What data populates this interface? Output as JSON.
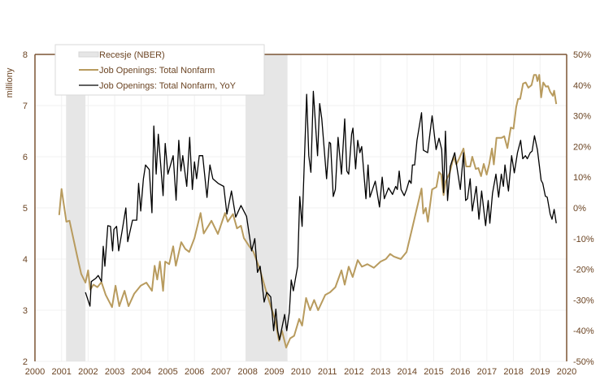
{
  "chart_data": {
    "type": "line",
    "title": "",
    "xlabel": "",
    "ylabel_left": "milliony",
    "ylabel_right": "",
    "xlim": [
      2000,
      2020
    ],
    "ylim_left": [
      2,
      8
    ],
    "ylim_right": [
      -50,
      50
    ],
    "x_ticks": [
      "2000",
      "2001",
      "2002",
      "2003",
      "2004",
      "2005",
      "2006",
      "2007",
      "2008",
      "2009",
      "2010",
      "2011",
      "2012",
      "2013",
      "2014",
      "2015",
      "2016",
      "2017",
      "2018",
      "2019",
      "2020"
    ],
    "y_ticks_left": [
      "2",
      "3",
      "4",
      "5",
      "6",
      "7",
      "8"
    ],
    "y_ticks_right": [
      "-50%",
      "-40%",
      "-30%",
      "-20%",
      "-10%",
      "0%",
      "10%",
      "20%",
      "30%",
      "40%",
      "50%"
    ],
    "grid": true,
    "legend_placement": "top-left",
    "legend": [
      "Recesje (NBER)",
      "Job Openings: Total Nonfarm",
      "Job Openings: Total Nonfarm, YoY"
    ],
    "recessions": [
      [
        2001.17,
        2001.9
      ],
      [
        2007.92,
        2009.5
      ]
    ],
    "colors": {
      "recession": "#e6e6e6",
      "level": "#b89b5e",
      "yoy": "#000000",
      "axis": "#7b5534"
    },
    "series": [
      {
        "name": "Job Openings: Total Nonfarm",
        "axis": "left",
        "unit": "millions",
        "points": [
          [
            2000.91,
            4.86
          ],
          [
            2001.0,
            5.37
          ],
          [
            2001.18,
            4.73
          ],
          [
            2001.3,
            4.75
          ],
          [
            2001.44,
            4.41
          ],
          [
            2001.6,
            4.03
          ],
          [
            2001.74,
            3.71
          ],
          [
            2001.9,
            3.54
          ],
          [
            2002.0,
            3.78
          ],
          [
            2002.08,
            3.4
          ],
          [
            2002.2,
            3.5
          ],
          [
            2002.35,
            3.45
          ],
          [
            2002.5,
            3.55
          ],
          [
            2002.66,
            3.3
          ],
          [
            2002.9,
            3.06
          ],
          [
            2003.03,
            3.48
          ],
          [
            2003.17,
            3.08
          ],
          [
            2003.37,
            3.38
          ],
          [
            2003.52,
            3.08
          ],
          [
            2003.73,
            3.32
          ],
          [
            2003.98,
            3.48
          ],
          [
            2004.19,
            3.54
          ],
          [
            2004.4,
            3.38
          ],
          [
            2004.5,
            3.87
          ],
          [
            2004.6,
            3.6
          ],
          [
            2004.7,
            3.95
          ],
          [
            2004.82,
            3.38
          ],
          [
            2004.9,
            3.95
          ],
          [
            2005.05,
            3.9
          ],
          [
            2005.2,
            4.25
          ],
          [
            2005.3,
            3.87
          ],
          [
            2005.5,
            4.33
          ],
          [
            2005.65,
            4.2
          ],
          [
            2005.8,
            4.14
          ],
          [
            2006.0,
            4.41
          ],
          [
            2006.23,
            4.9
          ],
          [
            2006.35,
            4.5
          ],
          [
            2006.64,
            4.75
          ],
          [
            2006.88,
            4.49
          ],
          [
            2007.15,
            4.9
          ],
          [
            2007.25,
            4.73
          ],
          [
            2007.45,
            4.88
          ],
          [
            2007.6,
            4.6
          ],
          [
            2007.75,
            4.65
          ],
          [
            2007.86,
            4.41
          ],
          [
            2008.06,
            4.25
          ],
          [
            2008.22,
            4.14
          ],
          [
            2008.47,
            3.78
          ],
          [
            2008.68,
            3.4
          ],
          [
            2008.87,
            3.08
          ],
          [
            2009.03,
            2.82
          ],
          [
            2009.18,
            2.4
          ],
          [
            2009.29,
            2.6
          ],
          [
            2009.45,
            2.27
          ],
          [
            2009.6,
            2.45
          ],
          [
            2009.75,
            2.5
          ],
          [
            2009.94,
            2.83
          ],
          [
            2010.05,
            2.7
          ],
          [
            2010.2,
            3.24
          ],
          [
            2010.35,
            3.0
          ],
          [
            2010.5,
            3.2
          ],
          [
            2010.65,
            3.0
          ],
          [
            2010.92,
            3.3
          ],
          [
            2011.1,
            3.35
          ],
          [
            2011.3,
            3.45
          ],
          [
            2011.53,
            3.78
          ],
          [
            2011.65,
            3.5
          ],
          [
            2011.8,
            3.85
          ],
          [
            2011.95,
            3.65
          ],
          [
            2012.14,
            3.98
          ],
          [
            2012.3,
            3.85
          ],
          [
            2012.5,
            3.9
          ],
          [
            2012.75,
            3.83
          ],
          [
            2013.0,
            3.95
          ],
          [
            2013.2,
            4.0
          ],
          [
            2013.36,
            4.1
          ],
          [
            2013.5,
            4.05
          ],
          [
            2013.76,
            4.0
          ],
          [
            2013.98,
            4.14
          ],
          [
            2014.2,
            4.62
          ],
          [
            2014.37,
            5.0
          ],
          [
            2014.54,
            5.38
          ],
          [
            2014.61,
            4.89
          ],
          [
            2014.7,
            5.0
          ],
          [
            2014.78,
            4.73
          ],
          [
            2014.94,
            5.36
          ],
          [
            2015.1,
            5.41
          ],
          [
            2015.2,
            5.7
          ],
          [
            2015.28,
            5.65
          ],
          [
            2015.37,
            5.25
          ],
          [
            2015.45,
            5.52
          ],
          [
            2015.6,
            5.68
          ],
          [
            2015.75,
            6.0
          ],
          [
            2015.85,
            5.85
          ],
          [
            2015.96,
            5.97
          ],
          [
            2016.12,
            6.16
          ],
          [
            2016.22,
            5.81
          ],
          [
            2016.37,
            5.81
          ],
          [
            2016.45,
            6.0
          ],
          [
            2016.58,
            5.76
          ],
          [
            2016.68,
            5.78
          ],
          [
            2016.78,
            5.62
          ],
          [
            2016.88,
            5.86
          ],
          [
            2016.99,
            5.65
          ],
          [
            2017.09,
            5.86
          ],
          [
            2017.19,
            6.16
          ],
          [
            2017.26,
            5.85
          ],
          [
            2017.36,
            6.37
          ],
          [
            2017.55,
            6.37
          ],
          [
            2017.65,
            6.4
          ],
          [
            2017.77,
            6.17
          ],
          [
            2017.9,
            6.57
          ],
          [
            2018.0,
            6.55
          ],
          [
            2018.1,
            6.97
          ],
          [
            2018.17,
            7.13
          ],
          [
            2018.25,
            7.13
          ],
          [
            2018.36,
            7.43
          ],
          [
            2018.46,
            7.45
          ],
          [
            2018.56,
            7.35
          ],
          [
            2018.68,
            7.4
          ],
          [
            2018.77,
            7.6
          ],
          [
            2018.85,
            7.6
          ],
          [
            2018.9,
            7.48
          ],
          [
            2018.97,
            7.6
          ],
          [
            2019.04,
            7.16
          ],
          [
            2019.12,
            7.45
          ],
          [
            2019.22,
            7.37
          ],
          [
            2019.3,
            7.38
          ],
          [
            2019.38,
            7.27
          ],
          [
            2019.48,
            7.19
          ],
          [
            2019.53,
            7.29
          ],
          [
            2019.61,
            7.03
          ]
        ]
      },
      {
        "name": "Job Openings: Total Nonfarm, YoY",
        "axis": "right",
        "unit": "%",
        "points": [
          [
            2001.9,
            -27.5
          ],
          [
            2002.07,
            -32
          ],
          [
            2002.12,
            -24
          ],
          [
            2002.28,
            -23
          ],
          [
            2002.38,
            -22
          ],
          [
            2002.5,
            -24
          ],
          [
            2002.57,
            -12.5
          ],
          [
            2002.63,
            -19
          ],
          [
            2002.74,
            -5.8
          ],
          [
            2002.84,
            -6
          ],
          [
            2002.92,
            -14
          ],
          [
            2002.97,
            -7
          ],
          [
            2003.07,
            -6
          ],
          [
            2003.15,
            -14
          ],
          [
            2003.27,
            -8
          ],
          [
            2003.42,
            0
          ],
          [
            2003.49,
            -11
          ],
          [
            2003.67,
            -4
          ],
          [
            2003.83,
            -4
          ],
          [
            2003.9,
            8
          ],
          [
            2003.98,
            -1
          ],
          [
            2004.08,
            9.5
          ],
          [
            2004.16,
            14
          ],
          [
            2004.3,
            12.5
          ],
          [
            2004.4,
            -1.6
          ],
          [
            2004.47,
            26.7
          ],
          [
            2004.56,
            11
          ],
          [
            2004.64,
            24
          ],
          [
            2004.82,
            4
          ],
          [
            2004.9,
            21
          ],
          [
            2005.0,
            11
          ],
          [
            2005.2,
            17
          ],
          [
            2005.31,
            2.5
          ],
          [
            2005.41,
            22
          ],
          [
            2005.49,
            12
          ],
          [
            2005.56,
            17
          ],
          [
            2005.71,
            7
          ],
          [
            2005.82,
            23
          ],
          [
            2005.92,
            6
          ],
          [
            2006.0,
            15
          ],
          [
            2006.08,
            9.5
          ],
          [
            2006.18,
            17
          ],
          [
            2006.31,
            17
          ],
          [
            2006.47,
            3.4
          ],
          [
            2006.58,
            14
          ],
          [
            2006.69,
            9.5
          ],
          [
            2006.89,
            8
          ],
          [
            2007.1,
            7
          ],
          [
            2007.22,
            -2
          ],
          [
            2007.39,
            5.5
          ],
          [
            2007.55,
            -3
          ],
          [
            2007.75,
            0.8
          ],
          [
            2007.96,
            -2.8
          ],
          [
            2008.15,
            -14
          ],
          [
            2008.27,
            -10
          ],
          [
            2008.37,
            -21
          ],
          [
            2008.47,
            -19
          ],
          [
            2008.62,
            -30.7
          ],
          [
            2008.72,
            -27.5
          ],
          [
            2008.87,
            -29
          ],
          [
            2008.98,
            -40
          ],
          [
            2009.06,
            -33
          ],
          [
            2009.13,
            -40
          ],
          [
            2009.2,
            -43
          ],
          [
            2009.39,
            -34.7
          ],
          [
            2009.47,
            -40
          ],
          [
            2009.57,
            -34
          ],
          [
            2009.64,
            -23.5
          ],
          [
            2009.72,
            -27
          ],
          [
            2009.88,
            -19
          ],
          [
            2009.96,
            3.7
          ],
          [
            2010.05,
            -6
          ],
          [
            2010.22,
            37
          ],
          [
            2010.3,
            17
          ],
          [
            2010.38,
            11.6
          ],
          [
            2010.47,
            38
          ],
          [
            2010.63,
            17
          ],
          [
            2010.71,
            34
          ],
          [
            2010.79,
            29
          ],
          [
            2010.97,
            9.5
          ],
          [
            2011.07,
            21.4
          ],
          [
            2011.12,
            21
          ],
          [
            2011.22,
            3.7
          ],
          [
            2011.3,
            6
          ],
          [
            2011.4,
            23
          ],
          [
            2011.53,
            11
          ],
          [
            2011.65,
            29
          ],
          [
            2011.73,
            12
          ],
          [
            2011.8,
            11
          ],
          [
            2011.91,
            24
          ],
          [
            2011.96,
            26
          ],
          [
            2012.06,
            12.7
          ],
          [
            2012.14,
            22
          ],
          [
            2012.22,
            18
          ],
          [
            2012.29,
            20
          ],
          [
            2012.45,
            3
          ],
          [
            2012.53,
            14
          ],
          [
            2012.6,
            3.5
          ],
          [
            2012.8,
            8.7
          ],
          [
            2012.96,
            0.3
          ],
          [
            2013.06,
            10
          ],
          [
            2013.14,
            3
          ],
          [
            2013.3,
            6.5
          ],
          [
            2013.45,
            4.4
          ],
          [
            2013.57,
            7
          ],
          [
            2013.63,
            6
          ],
          [
            2013.7,
            12
          ],
          [
            2013.77,
            6
          ],
          [
            2013.89,
            4
          ],
          [
            2013.98,
            6
          ],
          [
            2014.08,
            9
          ],
          [
            2014.15,
            8
          ],
          [
            2014.2,
            14
          ],
          [
            2014.28,
            14
          ],
          [
            2014.37,
            22
          ],
          [
            2014.54,
            31
          ],
          [
            2014.61,
            18.8
          ],
          [
            2014.77,
            18
          ],
          [
            2014.94,
            30
          ],
          [
            2015.09,
            19
          ],
          [
            2015.2,
            22.7
          ],
          [
            2015.3,
            19
          ],
          [
            2015.37,
            5
          ],
          [
            2015.44,
            25
          ],
          [
            2015.52,
            2.4
          ],
          [
            2015.62,
            13.5
          ],
          [
            2015.79,
            18
          ],
          [
            2016.0,
            6
          ],
          [
            2016.12,
            18
          ],
          [
            2016.2,
            2.4
          ],
          [
            2016.27,
            3
          ],
          [
            2016.37,
            9.5
          ],
          [
            2016.45,
            -1
          ],
          [
            2016.6,
            7
          ],
          [
            2016.7,
            -3.7
          ],
          [
            2016.8,
            5.5
          ],
          [
            2016.95,
            -5.8
          ],
          [
            2017.05,
            2.4
          ],
          [
            2017.11,
            -5
          ],
          [
            2017.21,
            4.8
          ],
          [
            2017.34,
            11
          ],
          [
            2017.44,
            3.5
          ],
          [
            2017.54,
            11
          ],
          [
            2017.62,
            7
          ],
          [
            2017.68,
            14
          ],
          [
            2017.81,
            5.5
          ],
          [
            2017.93,
            17
          ],
          [
            2018.03,
            11.4
          ],
          [
            2018.15,
            18
          ],
          [
            2018.27,
            22
          ],
          [
            2018.35,
            16
          ],
          [
            2018.45,
            17
          ],
          [
            2018.52,
            16
          ],
          [
            2018.63,
            18
          ],
          [
            2018.7,
            18.5
          ],
          [
            2018.79,
            23.5
          ],
          [
            2018.9,
            19
          ],
          [
            2019.04,
            9
          ],
          [
            2019.1,
            8
          ],
          [
            2019.2,
            3.8
          ],
          [
            2019.27,
            3.5
          ],
          [
            2019.38,
            -2
          ],
          [
            2019.45,
            -3.7
          ],
          [
            2019.53,
            -0.5
          ],
          [
            2019.61,
            -5
          ]
        ]
      }
    ]
  }
}
